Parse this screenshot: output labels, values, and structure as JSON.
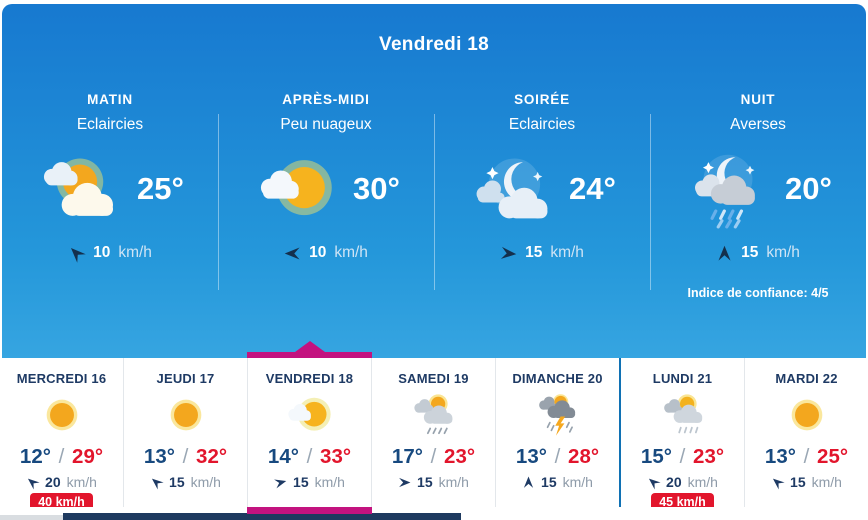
{
  "hero": {
    "title": "Vendredi 18",
    "confidence_note": "Indice de confiance: 4/5",
    "periods": [
      {
        "name": "MATIN",
        "condition": "Eclaircies",
        "temperature": "25°",
        "wind_speed": "10",
        "wind_unit": "km/h",
        "wind_direction_deg": -135,
        "icon": "sun-clouds"
      },
      {
        "name": "APRÈS-MIDI",
        "condition": "Peu nuageux",
        "temperature": "30°",
        "wind_speed": "10",
        "wind_unit": "km/h",
        "wind_direction_deg": 180,
        "icon": "sun-small-cloud"
      },
      {
        "name": "SOIRÉE",
        "condition": "Eclaircies",
        "temperature": "24°",
        "wind_speed": "15",
        "wind_unit": "km/h",
        "wind_direction_deg": 5,
        "icon": "moon-clouds"
      },
      {
        "name": "NUIT",
        "condition": "Averses",
        "temperature": "20°",
        "wind_speed": "15",
        "wind_unit": "km/h",
        "wind_direction_deg": -90,
        "icon": "moon-rain"
      }
    ]
  },
  "labels": {
    "temp_separator": "/"
  },
  "days": [
    {
      "name": "MERCREDI 16",
      "icon": "sun",
      "temp_min": "12°",
      "temp_max": "29°",
      "wind_speed": "20",
      "wind_unit": "km/h",
      "wind_direction_deg": -140,
      "gust": "40 km/h",
      "selected": false
    },
    {
      "name": "JEUDI 17",
      "icon": "sun",
      "temp_min": "13°",
      "temp_max": "32°",
      "wind_speed": "15",
      "wind_unit": "km/h",
      "wind_direction_deg": -140,
      "selected": false
    },
    {
      "name": "VENDREDI 18",
      "icon": "sun-small-cloud",
      "temp_min": "14°",
      "temp_max": "33°",
      "wind_speed": "15",
      "wind_unit": "km/h",
      "wind_direction_deg": -15,
      "selected": true
    },
    {
      "name": "SAMEDI 19",
      "icon": "sun-rain",
      "temp_min": "17°",
      "temp_max": "23°",
      "wind_speed": "15",
      "wind_unit": "km/h",
      "wind_direction_deg": 0,
      "selected": false
    },
    {
      "name": "DIMANCHE 20",
      "icon": "storm",
      "temp_min": "13°",
      "temp_max": "28°",
      "wind_speed": "15",
      "wind_unit": "km/h",
      "wind_direction_deg": -90,
      "selected": false
    },
    {
      "name": "LUNDI 21",
      "icon": "sun-rain-light",
      "temp_min": "15°",
      "temp_max": "23°",
      "wind_speed": "20",
      "wind_unit": "km/h",
      "wind_direction_deg": -140,
      "gust": "45 km/h",
      "selected": false
    },
    {
      "name": "MARDI 22",
      "icon": "sun",
      "temp_min": "13°",
      "temp_max": "25°",
      "wind_speed": "15",
      "wind_unit": "km/h",
      "wind_direction_deg": -140,
      "selected": false
    }
  ],
  "colors": {
    "hero_gradient_top": "#1779d0",
    "hero_gradient_bottom": "#36a5e1",
    "accent_magenta": "#c3137f",
    "alert_red": "#e2152c",
    "temp_min_blue": "#17497f",
    "navy_text": "#1e3a64",
    "muted_gray": "#8e9ba9",
    "week_separator_blue": "#1071b4"
  }
}
